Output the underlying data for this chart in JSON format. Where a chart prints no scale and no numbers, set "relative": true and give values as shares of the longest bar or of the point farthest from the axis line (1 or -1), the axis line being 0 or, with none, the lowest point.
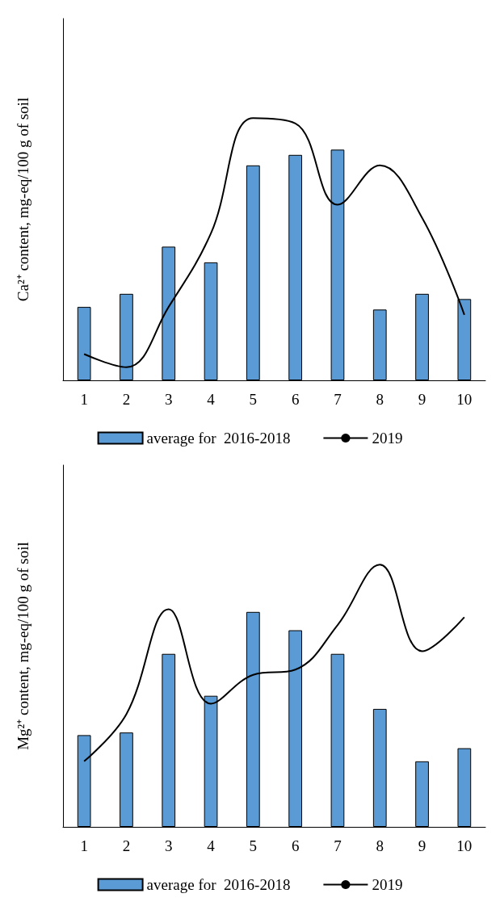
{
  "chart_data": [
    {
      "type": "bar",
      "ylabel": "Ca²⁺ content, mg-eq/100 g of soil",
      "categories": [
        "1",
        "2",
        "3",
        "4",
        "5",
        "6",
        "7",
        "8",
        "9",
        "10"
      ],
      "relative": true,
      "legend": "bottom",
      "grid": false,
      "series": [
        {
          "name": "average for  2016-2018",
          "color": "#5b9bd5",
          "values": [
            0.28,
            0.33,
            0.51,
            0.45,
            0.82,
            0.86,
            0.88,
            0.27,
            0.33,
            0.31
          ]
        },
        {
          "name": "2019",
          "type": "line",
          "color": "#000000",
          "marker": "none",
          "values": [
            0.1,
            0.05,
            0.28,
            0.56,
            1,
            0.98,
            0.67,
            0.82,
            0.62,
            0.25
          ]
        }
      ]
    },
    {
      "type": "bar",
      "ylabel": "Mg²⁺ content, mg-eq/100 g of soil",
      "categories": [
        "1",
        "2",
        "3",
        "4",
        "5",
        "6",
        "7",
        "8",
        "9",
        "10"
      ],
      "relative": true,
      "legend": "bottom",
      "grid": false,
      "series": [
        {
          "name": "average for  2016-2018",
          "color": "#5b9bd5",
          "values": [
            0.35,
            0.36,
            0.66,
            0.5,
            0.82,
            0.75,
            0.66,
            0.45,
            0.25,
            0.3
          ]
        },
        {
          "name": "2019",
          "type": "line",
          "color": "#000000",
          "marker": "none",
          "values": [
            0.25,
            0.43,
            0.83,
            0.47,
            0.58,
            0.6,
            0.77,
            1,
            0.67,
            0.8
          ]
        }
      ]
    }
  ]
}
